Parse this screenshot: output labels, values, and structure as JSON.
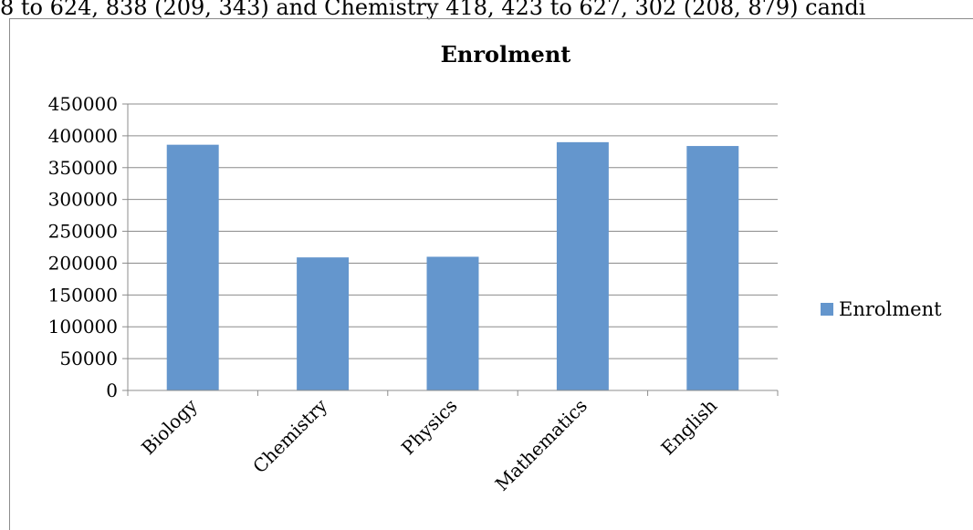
{
  "top_text": "8 to 624, 838 (209, 343) and Chemistry 418, 423 to 627, 302 (208, 879) candi",
  "chart_data": {
    "type": "bar",
    "title": "Enrolment",
    "categories": [
      "Biology",
      "Chemistry",
      "Physics",
      "Mathematics",
      "English"
    ],
    "series": [
      {
        "name": "Enrolment",
        "values": [
          386000,
          209000,
          210000,
          390000,
          384000
        ]
      }
    ],
    "ylim": [
      0,
      450000
    ],
    "yticks": [
      0,
      50000,
      100000,
      150000,
      200000,
      250000,
      300000,
      350000,
      400000,
      450000
    ],
    "ytick_labels": [
      "0",
      "50000",
      "100000",
      "150000",
      "200000",
      "250000",
      "300000",
      "350000",
      "400000",
      "450000"
    ],
    "grid": true,
    "legend": "right",
    "bar_color": "#6496cd"
  }
}
